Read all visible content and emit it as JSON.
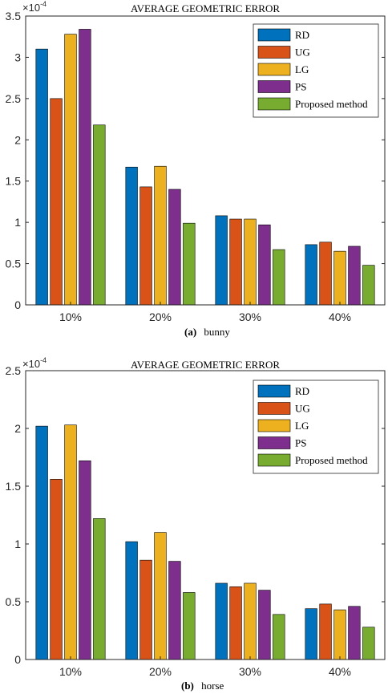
{
  "colors": {
    "series": [
      "#0072BD",
      "#D95319",
      "#EDB120",
      "#7E2F8E",
      "#77AC30"
    ],
    "axis": "#262626",
    "legend_border": "#262626"
  },
  "chart_data": [
    {
      "type": "bar",
      "title": "AVERAGE GEOMETRIC ERROR",
      "caption_label": "(a)",
      "caption_text": "bunny",
      "exponent": "×10",
      "exponent_power": "-4",
      "categories": [
        "10%",
        "20%",
        "30%",
        "40%"
      ],
      "ylim": [
        0,
        3.5
      ],
      "yticks": [
        0,
        0.5,
        1,
        1.5,
        2,
        2.5,
        3,
        3.5
      ],
      "ytick_labels": [
        "0",
        "0.5",
        "1",
        "1.5",
        "2",
        "2.5",
        "3",
        "3.5"
      ],
      "legend_position": "top-right",
      "grid": false,
      "series": [
        {
          "name": "RD",
          "values": [
            3.1,
            1.67,
            1.08,
            0.73
          ]
        },
        {
          "name": "UG",
          "values": [
            2.5,
            1.43,
            1.04,
            0.76
          ]
        },
        {
          "name": "LG",
          "values": [
            3.28,
            1.68,
            1.04,
            0.65
          ]
        },
        {
          "name": "PS",
          "values": [
            3.34,
            1.4,
            0.97,
            0.71
          ]
        },
        {
          "name": "Proposed method",
          "values": [
            2.18,
            0.99,
            0.67,
            0.48
          ]
        }
      ]
    },
    {
      "type": "bar",
      "title": "AVERAGE GEOMETRIC ERROR",
      "caption_label": "(b)",
      "caption_text": "horse",
      "exponent": "×10",
      "exponent_power": "-4",
      "categories": [
        "10%",
        "20%",
        "30%",
        "40%"
      ],
      "ylim": [
        0,
        2.5
      ],
      "yticks": [
        0,
        0.5,
        1,
        1.5,
        2,
        2.5
      ],
      "ytick_labels": [
        "0",
        "0.5",
        "1",
        "1.5",
        "2",
        "2.5"
      ],
      "legend_position": "top-right",
      "grid": false,
      "series": [
        {
          "name": "RD",
          "values": [
            2.02,
            1.02,
            0.66,
            0.44
          ]
        },
        {
          "name": "UG",
          "values": [
            1.56,
            0.86,
            0.63,
            0.48
          ]
        },
        {
          "name": "LG",
          "values": [
            2.03,
            1.1,
            0.66,
            0.43
          ]
        },
        {
          "name": "PS",
          "values": [
            1.72,
            0.85,
            0.6,
            0.46
          ]
        },
        {
          "name": "Proposed method",
          "values": [
            1.22,
            0.58,
            0.39,
            0.28
          ]
        }
      ]
    }
  ]
}
